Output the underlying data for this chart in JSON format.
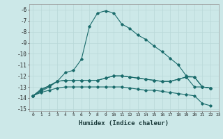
{
  "xlabel": "Humidex (Indice chaleur)",
  "ylabel": "",
  "background_color": "#cce8e8",
  "grid_color": "#b8d8d8",
  "line_color": "#1a6b6b",
  "xlim": [
    -0.5,
    23
  ],
  "ylim": [
    -15.2,
    -5.5
  ],
  "yticks": [
    -6,
    -7,
    -8,
    -9,
    -10,
    -11,
    -12,
    -13,
    -14,
    -15
  ],
  "xticks": [
    0,
    1,
    2,
    3,
    4,
    5,
    6,
    7,
    8,
    9,
    10,
    11,
    12,
    13,
    14,
    15,
    16,
    17,
    18,
    19,
    20,
    21,
    22,
    23
  ],
  "line1_x": [
    0,
    1,
    2,
    3,
    4,
    5,
    6,
    7,
    8,
    9,
    10,
    11,
    12,
    13,
    14,
    15,
    16,
    17,
    18,
    19,
    20,
    21,
    22
  ],
  "line1_y": [
    -13.8,
    -13.4,
    -13.0,
    -12.5,
    -11.7,
    -11.5,
    -10.5,
    -7.5,
    -6.3,
    -6.1,
    -6.3,
    -7.3,
    -7.7,
    -8.3,
    -8.7,
    -9.3,
    -9.8,
    -10.4,
    -11.0,
    -12.0,
    -12.1,
    -13.0,
    -13.1
  ],
  "line2_x": [
    0,
    1,
    2,
    3,
    4,
    5,
    6,
    7,
    8,
    9,
    10,
    11,
    12,
    13,
    14,
    15,
    16,
    17,
    18,
    19,
    20,
    21,
    22
  ],
  "line2_y": [
    -13.8,
    -13.2,
    -12.9,
    -12.5,
    -12.4,
    -12.4,
    -12.4,
    -12.4,
    -12.4,
    -12.2,
    -12.0,
    -12.0,
    -12.1,
    -12.2,
    -12.3,
    -12.4,
    -12.5,
    -12.5,
    -12.3,
    -12.1,
    -13.0,
    -13.0,
    -13.1
  ],
  "line3_x": [
    0,
    1,
    2,
    3,
    4,
    5,
    6,
    7,
    8,
    9,
    10,
    11,
    12,
    13,
    14,
    15,
    16,
    17,
    18,
    19,
    20,
    21,
    22
  ],
  "line3_y": [
    -13.8,
    -13.3,
    -12.9,
    -12.5,
    -12.4,
    -12.4,
    -12.4,
    -12.4,
    -12.4,
    -12.2,
    -12.0,
    -12.0,
    -12.1,
    -12.2,
    -12.3,
    -12.4,
    -12.5,
    -12.5,
    -12.3,
    -12.1,
    -12.1,
    -13.0,
    -13.1
  ],
  "line4_x": [
    0,
    1,
    2,
    3,
    4,
    5,
    6,
    7,
    8,
    9,
    10,
    11,
    12,
    13,
    14,
    15,
    16,
    17,
    18,
    19,
    20,
    21,
    22
  ],
  "line4_y": [
    -13.8,
    -13.5,
    -13.3,
    -13.1,
    -13.0,
    -13.0,
    -13.0,
    -13.0,
    -13.0,
    -13.0,
    -13.0,
    -13.0,
    -13.1,
    -13.2,
    -13.3,
    -13.3,
    -13.4,
    -13.5,
    -13.6,
    -13.7,
    -13.8,
    -14.5,
    -14.7
  ]
}
